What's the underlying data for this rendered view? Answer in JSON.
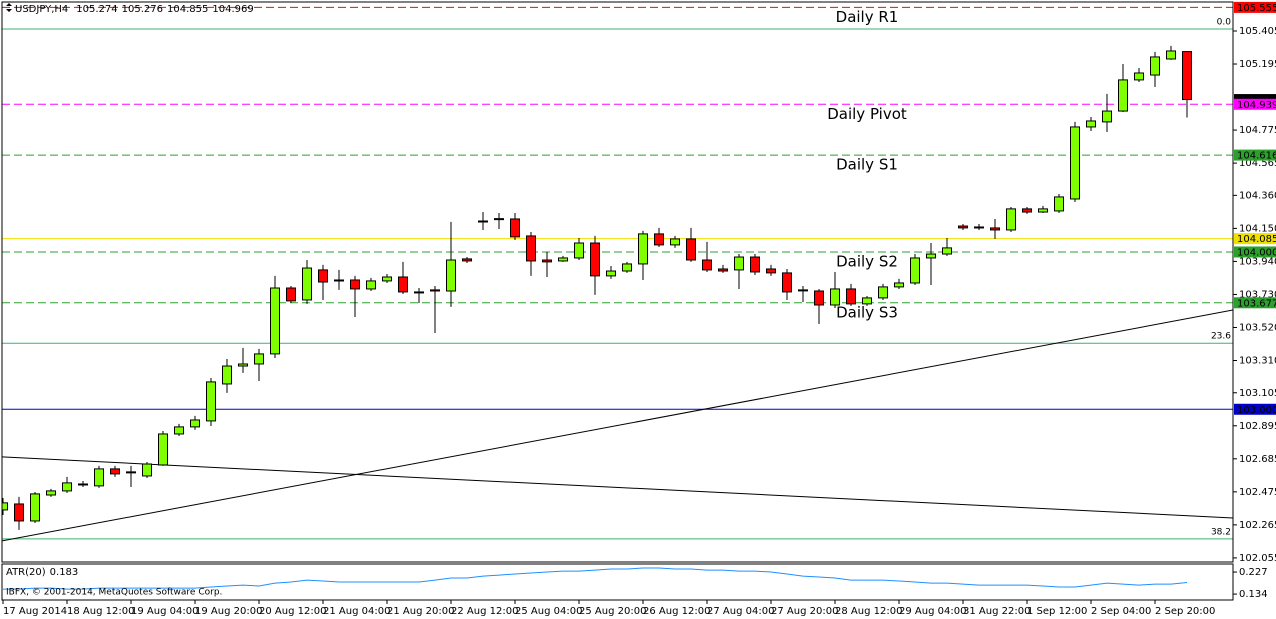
{
  "chart_data": {
    "type": "candlestick",
    "categories": [
      "17 Aug 2014",
      null,
      null,
      null,
      "18 Aug 12:00",
      null,
      null,
      null,
      "19 Aug 04:00",
      null,
      null,
      null,
      "19 Aug 20:00",
      null,
      null,
      null,
      "20 Aug 12:00",
      null,
      null,
      null,
      "21 Aug 04:00",
      null,
      null,
      null,
      "21 Aug 20:00",
      null,
      null,
      null,
      "22 Aug 12:00",
      null,
      null,
      null,
      "25 Aug 04:00",
      null,
      null,
      null,
      "25 Aug 20:00",
      null,
      null,
      null,
      "26 Aug 12:00",
      null,
      null,
      null,
      "27 Aug 04:00",
      null,
      null,
      null,
      "27 Aug 20:00",
      null,
      null,
      null,
      "28 Aug 12:00",
      null,
      null,
      null,
      "29 Aug 04:00",
      null,
      null,
      null,
      "31 Aug 22:00",
      null,
      null,
      null,
      "1 Sep 12:00",
      null,
      null,
      null,
      "2 Sep 04:00",
      null,
      null,
      null,
      "2 Sep 20:00",
      null,
      null
    ],
    "series": [
      {
        "name": "USDJPY,H4",
        "up_color": "#7fff00",
        "down_color": "#ff0000",
        "open": [
          102.36,
          102.398,
          102.29,
          102.455,
          102.481,
          102.519,
          102.513,
          102.621,
          102.602,
          102.576,
          102.646,
          102.843,
          102.888,
          102.926,
          103.161,
          103.275,
          103.288,
          103.352,
          103.771,
          103.695,
          103.886,
          103.822,
          103.822,
          103.765,
          103.816,
          103.841,
          103.746,
          103.759,
          103.752,
          103.956,
          104.197,
          104.21,
          104.21,
          104.102,
          103.949,
          103.943,
          103.962,
          104.057,
          103.848,
          103.879,
          103.924,
          104.115,
          104.045,
          104.083,
          103.949,
          103.892,
          103.886,
          103.968,
          103.892,
          103.867,
          103.759,
          103.752,
          103.663,
          103.765,
          103.67,
          103.708,
          103.778,
          103.803,
          103.962,
          103.987,
          104.165,
          104.159,
          104.153,
          104.14,
          104.274,
          104.254,
          104.261,
          104.337,
          104.795,
          104.827,
          104.896,
          105.094,
          105.125,
          105.227,
          105.274
        ],
        "high": [
          102.436,
          102.443,
          102.474,
          102.494,
          102.57,
          102.544,
          102.64,
          102.64,
          102.64,
          102.665,
          102.862,
          102.907,
          102.958,
          103.199,
          103.32,
          103.39,
          103.384,
          103.848,
          103.784,
          103.949,
          103.918,
          103.886,
          103.848,
          103.835,
          103.86,
          103.937,
          103.771,
          103.784,
          104.191,
          103.968,
          104.254,
          104.248,
          104.248,
          104.127,
          104.0,
          103.975,
          104.089,
          104.102,
          103.911,
          103.937,
          104.134,
          104.153,
          104.102,
          104.153,
          104.064,
          103.918,
          103.987,
          103.987,
          103.918,
          103.892,
          103.784,
          103.765,
          103.873,
          103.797,
          103.72,
          103.797,
          103.829,
          103.987,
          104.057,
          104.089,
          104.178,
          104.178,
          104.21,
          104.286,
          104.286,
          104.293,
          104.369,
          104.827,
          104.858,
          105.005,
          105.195,
          105.17,
          105.272,
          105.31,
          105.276
        ],
        "low": [
          102.328,
          102.233,
          102.277,
          102.443,
          102.468,
          102.506,
          102.5,
          102.57,
          102.506,
          102.563,
          102.64,
          102.83,
          102.869,
          102.894,
          103.104,
          103.231,
          103.18,
          103.326,
          103.676,
          103.67,
          103.695,
          103.759,
          103.587,
          103.752,
          103.803,
          103.733,
          103.676,
          103.485,
          103.651,
          103.93,
          104.14,
          104.146,
          104.076,
          103.848,
          103.841,
          103.937,
          103.949,
          103.727,
          103.829,
          103.867,
          103.822,
          104.032,
          104.026,
          103.937,
          103.873,
          103.867,
          103.765,
          103.854,
          103.848,
          103.695,
          103.682,
          103.542,
          103.644,
          103.657,
          103.657,
          103.695,
          103.765,
          103.79,
          103.79,
          103.975,
          104.14,
          104.14,
          104.083,
          104.127,
          104.242,
          104.248,
          104.248,
          104.318,
          104.769,
          104.763,
          104.89,
          105.081,
          105.049,
          105.221,
          104.855
        ],
        "close": [
          102.405,
          102.29,
          102.462,
          102.481,
          102.532,
          102.525,
          102.621,
          102.589,
          102.6,
          102.652,
          102.843,
          102.888,
          102.932,
          103.174,
          103.275,
          103.288,
          103.352,
          103.771,
          103.689,
          103.898,
          103.809,
          103.816,
          103.765,
          103.816,
          103.841,
          103.746,
          103.744,
          103.752,
          103.949,
          103.943,
          104.195,
          104.212,
          104.096,
          103.943,
          103.937,
          103.962,
          104.057,
          103.848,
          103.879,
          103.924,
          104.115,
          104.045,
          104.083,
          103.949,
          103.886,
          103.879,
          103.968,
          103.873,
          103.867,
          103.746,
          103.757,
          103.663,
          103.765,
          103.67,
          103.708,
          103.778,
          103.803,
          103.962,
          103.987,
          104.026,
          104.153,
          104.157,
          104.14,
          104.274,
          104.254,
          104.274,
          104.35,
          104.795,
          104.833,
          104.896,
          105.094,
          105.138,
          105.24,
          105.278,
          104.969
        ]
      }
    ],
    "ylim": [
      102.029,
      105.602
    ],
    "yticks": [
      105.405,
      105.195,
      104.775,
      104.565,
      {
        "value": 104.36,
        "label": "104.360"
      },
      {
        "value": 104.15,
        "label": "104.150"
      },
      {
        "value": 103.94,
        "label": "103.940"
      },
      {
        "value": 103.73,
        "label": "103.730"
      },
      {
        "value": 103.52,
        "label": "103.520"
      },
      {
        "value": 103.31,
        "label": "103.310"
      },
      103.105,
      102.895,
      102.685,
      102.475,
      102.265,
      102.055
    ],
    "levels": [
      {
        "name": "Daily R1",
        "value": 105.555,
        "color": "#ff0000",
        "label_color": "#ff0000",
        "dashed": true
      },
      {
        "name": "Daily Pivot",
        "value": 104.939,
        "color": "#ff00ff",
        "label_color": "#e020e0",
        "dashed": true
      },
      {
        "name": "Daily S1",
        "value": 104.616,
        "color": "#2ca02c",
        "label_color": "#1c1c8a",
        "dashed": true
      },
      {
        "value": 104.085,
        "color": "#f0e000",
        "dashed": false
      },
      {
        "name": "Daily S2",
        "value": 104,
        "label": "104.000",
        "color": "#2ca02c",
        "label_color": "#1c1c8a",
        "dashed": true
      },
      {
        "name": "Daily S3",
        "value": 103.677,
        "color": "#2ca02c",
        "label_color": "#1c1c8a",
        "dashed": true
      },
      {
        "value": 103,
        "label": "103.000",
        "color": "#0000cc",
        "dashed": false
      }
    ],
    "fibonacci": {
      "color": "#3cb371",
      "levels": [
        {
          "label": "0.0",
          "value": 105.418
        },
        {
          "label": "23.6",
          "value": 103.42
        },
        {
          "label": "38.2",
          "value": 102.176
        }
      ]
    },
    "trendlines": [
      {
        "start": 102.163,
        "end": 103.631,
        "color": "#000000"
      },
      {
        "start": 102.697,
        "end": 102.309,
        "color": "#000000"
      }
    ],
    "indicator": {
      "name": "ATR(20)",
      "color": "#1e90ff",
      "ylim": [
        0.109,
        0.261
      ],
      "yticks": [
        0.227,
        0.134
      ],
      "values": [
        0.155,
        0.155,
        0.159,
        0.159,
        0.155,
        0.155,
        0.159,
        0.159,
        0.159,
        0.159,
        0.159,
        0.159,
        0.159,
        0.164,
        0.168,
        0.172,
        0.168,
        0.18,
        0.185,
        0.193,
        0.189,
        0.185,
        0.185,
        0.185,
        0.185,
        0.185,
        0.185,
        0.193,
        0.202,
        0.202,
        0.21,
        0.214,
        0.219,
        0.223,
        0.227,
        0.231,
        0.231,
        0.235,
        0.24,
        0.24,
        0.244,
        0.244,
        0.24,
        0.24,
        0.235,
        0.235,
        0.231,
        0.231,
        0.227,
        0.219,
        0.21,
        0.206,
        0.202,
        0.193,
        0.193,
        0.193,
        0.189,
        0.185,
        0.18,
        0.18,
        0.176,
        0.172,
        0.172,
        0.172,
        0.172,
        0.168,
        0.164,
        0.164,
        0.172,
        0.18,
        0.176,
        0.172,
        0.176,
        0.176,
        0.183
      ]
    },
    "copyright": "IBFX, © 2001-2014, MetaQuotes Software Corp."
  }
}
